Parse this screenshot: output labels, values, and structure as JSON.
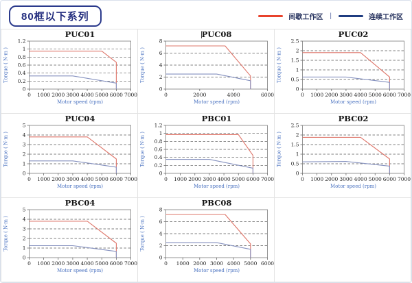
{
  "page": {
    "title_badge": "80框以下系列"
  },
  "legend": {
    "intermittent_label": "间歇工作区",
    "divider": "|",
    "continuous_label": "连续工作区",
    "intermittent_color": "#e8432c",
    "continuous_color": "#1f3c80"
  },
  "colors": {
    "chart_red": "#de7468",
    "chart_blue": "#8591bf",
    "gridline": "#555555",
    "plot_border": "#7a7a7a",
    "tick_text": "#222222",
    "axis_label_blue": "#4a72c0",
    "cell_border": "#e3e3e3"
  },
  "chart_data": [
    {
      "type": "line",
      "title": "PUC01",
      "xlabel": "Motor speed (rpm)",
      "ylabel": "Torque ( N·m )",
      "xlim": [
        0,
        7000
      ],
      "ylim": [
        0,
        1.2
      ],
      "xticks": [
        "0",
        "1000",
        "2000",
        "3000",
        "4000",
        "5000",
        "6000",
        "7000"
      ],
      "yticks": [
        "0",
        "0.2",
        "0.4",
        "0.6",
        "0.8",
        "1",
        "1.2"
      ],
      "grid": "dashed-horizontal",
      "legend_position": "none",
      "series": [
        {
          "name": "间歇工作区",
          "color": "red",
          "points": [
            [
              0,
              0.95
            ],
            [
              5000,
              0.95
            ],
            [
              6000,
              0.67
            ],
            [
              6000,
              0
            ]
          ]
        },
        {
          "name": "连续工作区",
          "color": "blue",
          "points": [
            [
              0,
              0.33
            ],
            [
              3000,
              0.33
            ],
            [
              6000,
              0.15
            ],
            [
              6000,
              0
            ]
          ]
        }
      ]
    },
    {
      "type": "line",
      "title": "PUC08",
      "caret_before_title": true,
      "xlabel": "Motor speed (rpm)",
      "ylabel": "Torque ( N·m )",
      "xlim": [
        0,
        6000
      ],
      "ylim": [
        0,
        8
      ],
      "xticks": [
        "0",
        "2000",
        "4000",
        "6000"
      ],
      "yticks": [
        "0",
        "2",
        "4",
        "6",
        "8"
      ],
      "grid": "dashed-horizontal",
      "legend_position": "none",
      "series": [
        {
          "name": "间歇工作区",
          "color": "red",
          "points": [
            [
              0,
              7.2
            ],
            [
              3500,
              7.2
            ],
            [
              5000,
              2.2
            ],
            [
              5000,
              0
            ]
          ]
        },
        {
          "name": "连续工作区",
          "color": "blue",
          "points": [
            [
              0,
              2.5
            ],
            [
              3000,
              2.5
            ],
            [
              5000,
              1.4
            ],
            [
              5000,
              0
            ]
          ]
        }
      ]
    },
    {
      "type": "line",
      "title": "PUC02",
      "xlabel": "Motor speed (rpm)",
      "ylabel": "Torque ( N·m )",
      "xlim": [
        0,
        7000
      ],
      "ylim": [
        0,
        2.5
      ],
      "xticks": [
        "0",
        "1000",
        "2000",
        "3000",
        "4000",
        "5000",
        "6000",
        "7000"
      ],
      "yticks": [
        "0",
        "0.5",
        "1",
        "1.5",
        "2",
        "2.5"
      ],
      "grid": "dashed-horizontal",
      "legend_position": "none",
      "series": [
        {
          "name": "间歇工作区",
          "color": "red",
          "points": [
            [
              0,
              1.9
            ],
            [
              4000,
              1.9
            ],
            [
              6000,
              0.63
            ],
            [
              6000,
              0
            ]
          ]
        },
        {
          "name": "连续工作区",
          "color": "blue",
          "points": [
            [
              0,
              0.63
            ],
            [
              3000,
              0.63
            ],
            [
              6000,
              0.35
            ],
            [
              6000,
              0
            ]
          ]
        }
      ]
    },
    {
      "type": "line",
      "title": "PUC04",
      "xlabel": "Motor speed (rpm)",
      "ylabel": "Torque ( N·m )",
      "xlim": [
        0,
        7000
      ],
      "ylim": [
        0,
        5
      ],
      "xticks": [
        "0",
        "1000",
        "2000",
        "3000",
        "4000",
        "5000",
        "6000",
        "7000"
      ],
      "yticks": [
        "0",
        "1",
        "2",
        "3",
        "4",
        "5"
      ],
      "grid": "dashed-horizontal",
      "legend_position": "none",
      "series": [
        {
          "name": "间歇工作区",
          "color": "red",
          "points": [
            [
              0,
              3.8
            ],
            [
              4000,
              3.8
            ],
            [
              6000,
              1.5
            ],
            [
              6000,
              0
            ]
          ]
        },
        {
          "name": "连续工作区",
          "color": "blue",
          "points": [
            [
              0,
              1.3
            ],
            [
              3000,
              1.3
            ],
            [
              6000,
              0.65
            ],
            [
              6000,
              0
            ]
          ]
        }
      ]
    },
    {
      "type": "line",
      "title": "PBC01",
      "xlabel": "Motor speed (rpm)",
      "ylabel": "Torque ( N·m )",
      "xlim": [
        0,
        7000
      ],
      "ylim": [
        0,
        1.2
      ],
      "xticks": [
        "0",
        "1000",
        "2000",
        "3000",
        "4000",
        "5000",
        "6000",
        "7000"
      ],
      "yticks": [
        "0",
        "0.2",
        "0.4",
        "0.6",
        "0.8",
        "1",
        "1.2"
      ],
      "grid": "dashed-horizontal",
      "legend_position": "none",
      "series": [
        {
          "name": "间歇工作区",
          "color": "red",
          "points": [
            [
              0,
              0.97
            ],
            [
              5000,
              0.97
            ],
            [
              6000,
              0.45
            ],
            [
              6000,
              0
            ]
          ]
        },
        {
          "name": "连续工作区",
          "color": "blue",
          "points": [
            [
              0,
              0.35
            ],
            [
              3000,
              0.35
            ],
            [
              6000,
              0.13
            ],
            [
              6000,
              0
            ]
          ]
        }
      ]
    },
    {
      "type": "line",
      "title": "PBC02",
      "xlabel": "Motor speed (rpm)",
      "ylabel": "Torque ( N·m )",
      "xlim": [
        0,
        7000
      ],
      "ylim": [
        0,
        2.5
      ],
      "xticks": [
        "0",
        "1000",
        "2000",
        "3000",
        "4000",
        "5000",
        "6000",
        "7000"
      ],
      "yticks": [
        "0",
        "0.5",
        "1",
        "1.5",
        "2",
        "2.5"
      ],
      "grid": "dashed-horizontal",
      "legend_position": "none",
      "series": [
        {
          "name": "间歇工作区",
          "color": "red",
          "points": [
            [
              0,
              1.88
            ],
            [
              4000,
              1.88
            ],
            [
              6000,
              0.75
            ],
            [
              6000,
              0
            ]
          ]
        },
        {
          "name": "连续工作区",
          "color": "blue",
          "points": [
            [
              0,
              0.6
            ],
            [
              3000,
              0.62
            ],
            [
              6000,
              0.38
            ],
            [
              6000,
              0
            ]
          ]
        }
      ]
    },
    {
      "type": "line",
      "title": "PBC04",
      "xlabel": "Motor speed (rpm)",
      "ylabel": "Torque ( N·m )",
      "xlim": [
        0,
        7000
      ],
      "ylim": [
        0,
        5
      ],
      "xticks": [
        "0",
        "1000",
        "2000",
        "3000",
        "4000",
        "5000",
        "6000",
        "7000"
      ],
      "yticks": [
        "0",
        "1",
        "2",
        "3",
        "4",
        "5"
      ],
      "grid": "dashed-horizontal",
      "legend_position": "none",
      "series": [
        {
          "name": "间歇工作区",
          "color": "red",
          "points": [
            [
              0,
              3.8
            ],
            [
              4000,
              3.8
            ],
            [
              6000,
              1.5
            ],
            [
              6000,
              0
            ]
          ]
        },
        {
          "name": "连续工作区",
          "color": "blue",
          "points": [
            [
              0,
              1.25
            ],
            [
              3000,
              1.25
            ],
            [
              6000,
              0.65
            ],
            [
              6000,
              0
            ]
          ]
        }
      ]
    },
    {
      "type": "line",
      "title": "PBC08",
      "xlabel": "Motor speed (rpm)",
      "ylabel": "Torque ( N·m )",
      "xlim": [
        0,
        6000
      ],
      "ylim": [
        0,
        8
      ],
      "xticks": [
        "0",
        "1000",
        "2000",
        "3000",
        "4000",
        "5000",
        "6000"
      ],
      "yticks": [
        "0",
        "2",
        "4",
        "6",
        "8"
      ],
      "grid": "dashed-horizontal",
      "legend_position": "none",
      "series": [
        {
          "name": "间歇工作区",
          "color": "red",
          "points": [
            [
              0,
              7.2
            ],
            [
              3500,
              7.2
            ],
            [
              5000,
              2.3
            ],
            [
              5000,
              0
            ]
          ]
        },
        {
          "name": "连续工作区",
          "color": "blue",
          "points": [
            [
              0,
              2.5
            ],
            [
              3000,
              2.5
            ],
            [
              5000,
              1.4
            ],
            [
              5000,
              0
            ]
          ]
        }
      ]
    }
  ]
}
